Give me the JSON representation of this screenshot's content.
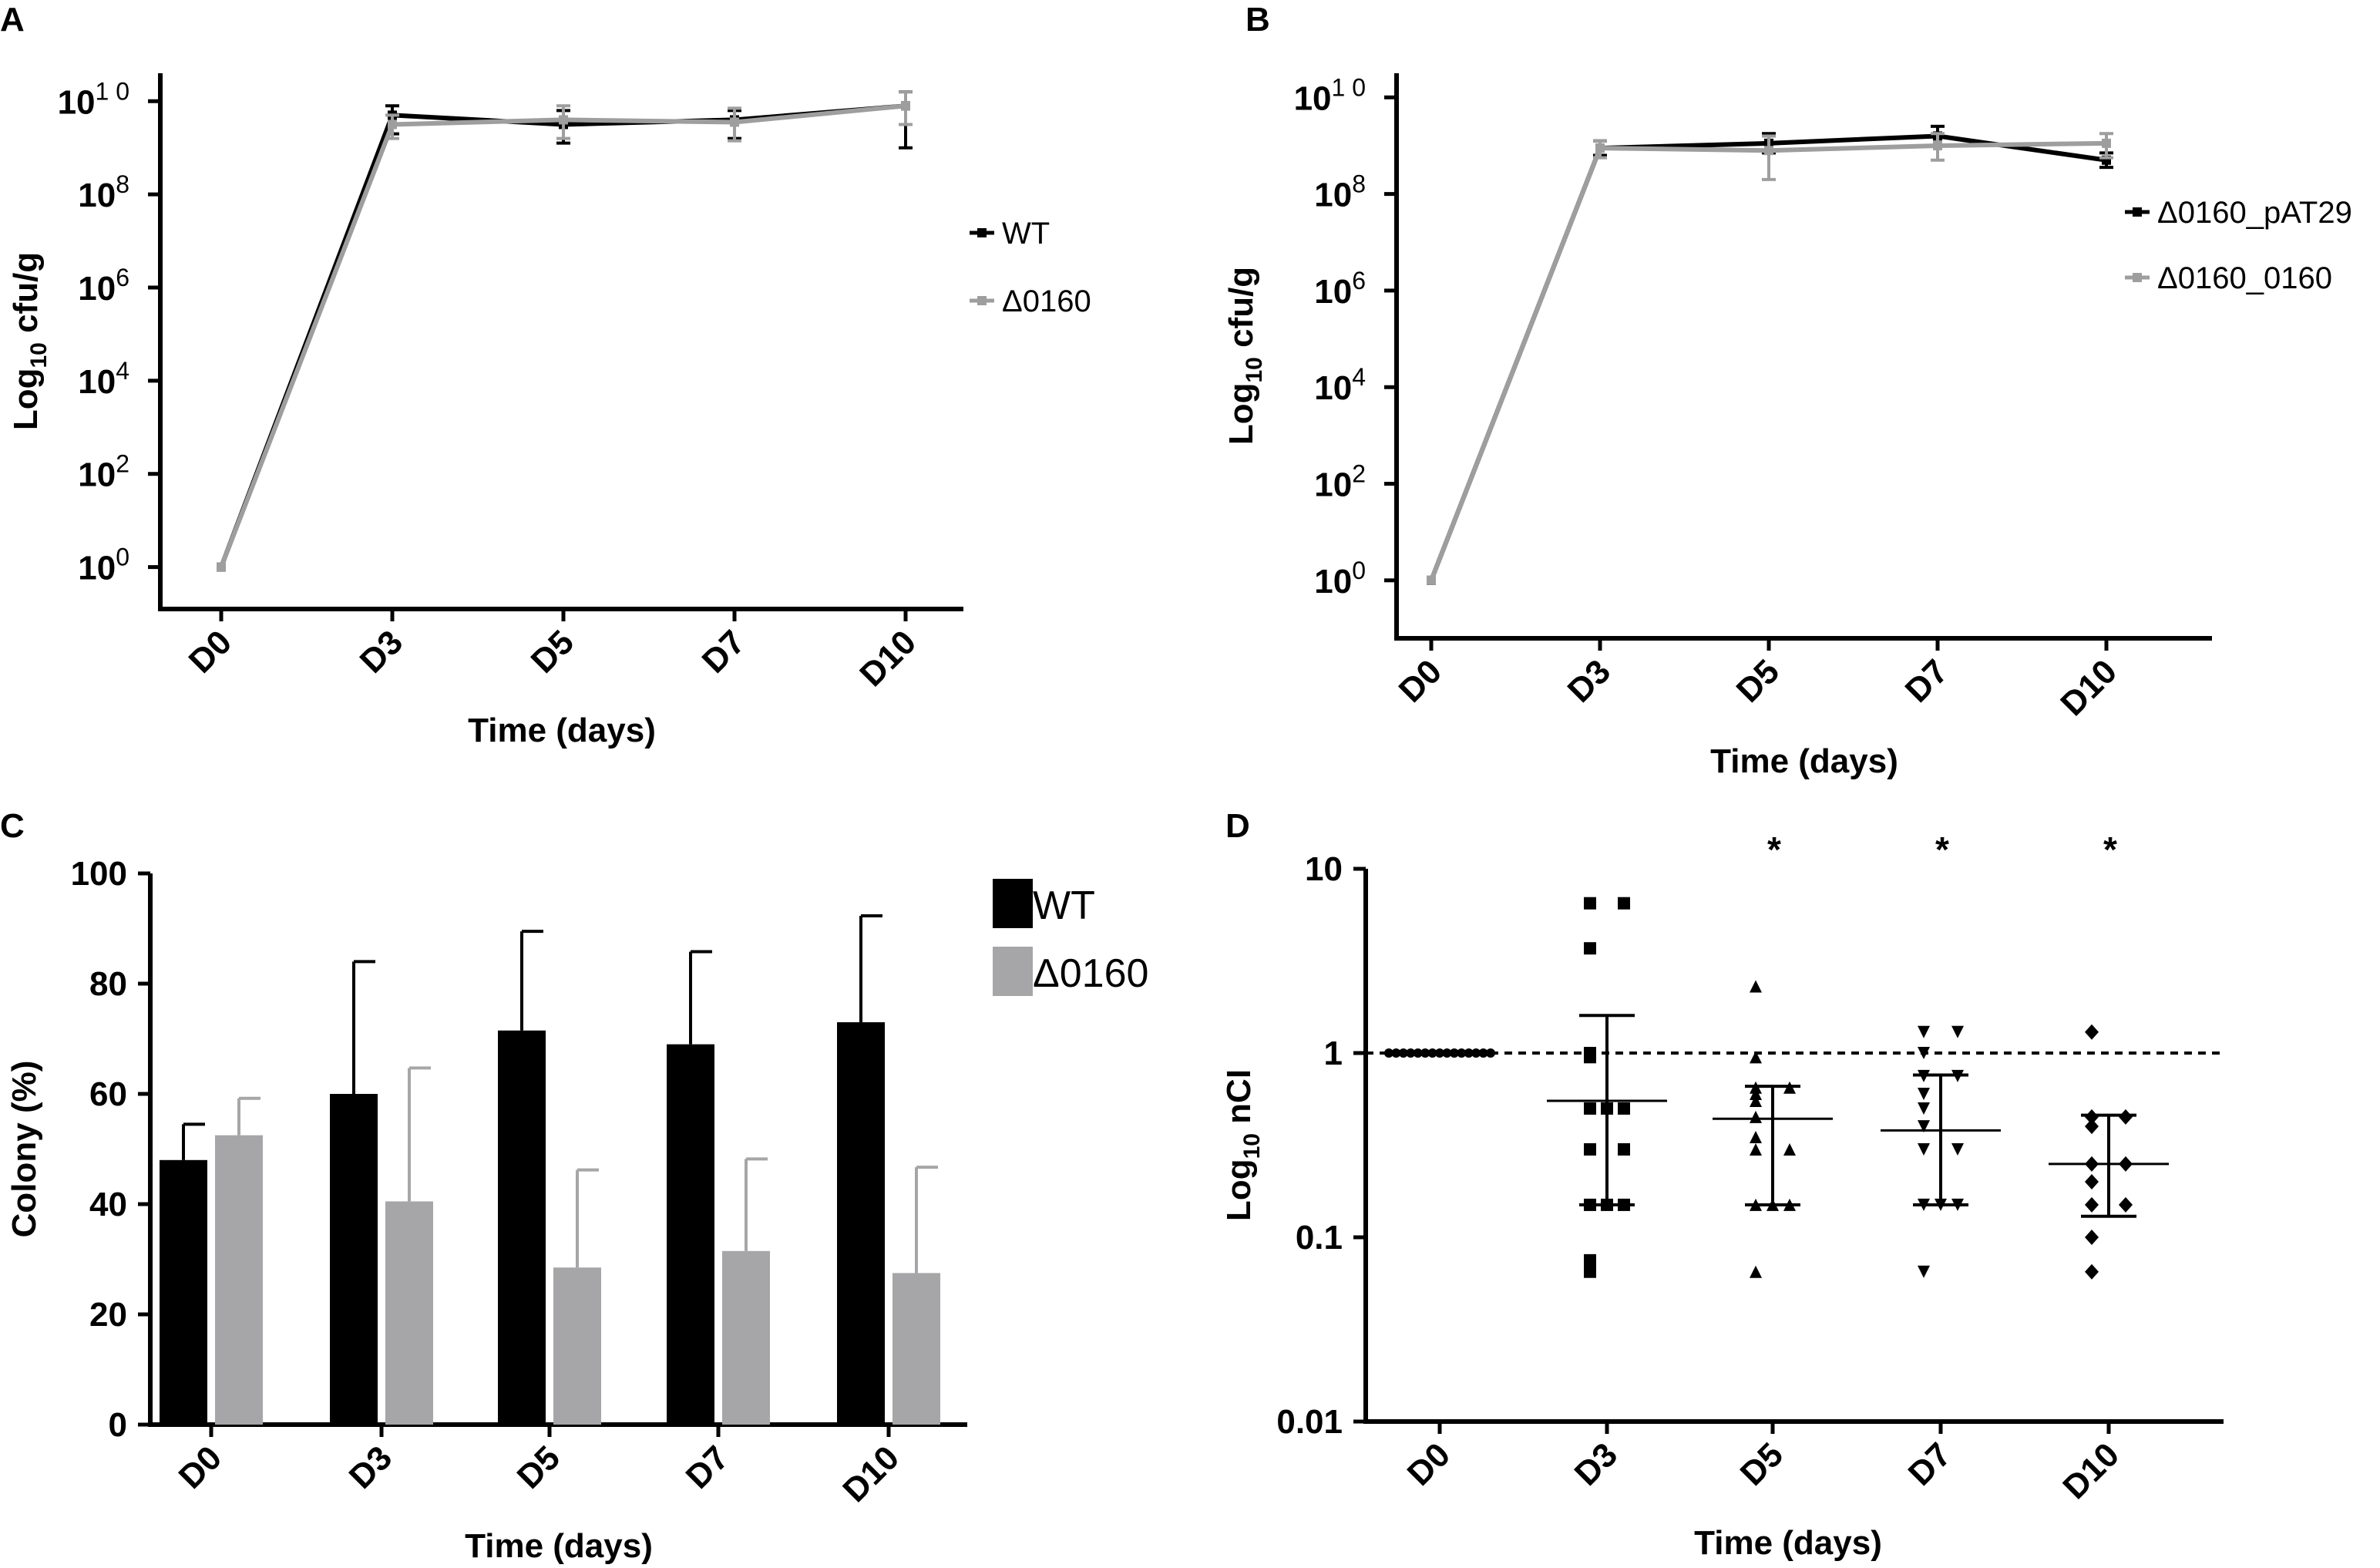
{
  "chart_data": [
    {
      "panel": "A",
      "type": "line",
      "categories": [
        "D0",
        "D3",
        "D5",
        "D7",
        "D10"
      ],
      "xlabel": "Time (days)",
      "ylabel": "Log10 cfu/g",
      "ylabel_base": "Log",
      "ylabel_sub": "10",
      "ylabel_rest": " cfu/g",
      "yscale": "log",
      "ylim_exp": [
        -0.9,
        10.6
      ],
      "yticks": [
        {
          "base": "10",
          "exp": "0",
          "value_exp": 0
        },
        {
          "base": "10",
          "exp": "2",
          "value_exp": 2
        },
        {
          "base": "10",
          "exp": "4",
          "value_exp": 4
        },
        {
          "base": "10",
          "exp": "6",
          "value_exp": 6
        },
        {
          "base": "10",
          "exp": "8",
          "value_exp": 8
        },
        {
          "base": "10",
          "exp": "1 0",
          "value_exp": 10
        }
      ],
      "series": [
        {
          "name": "WT",
          "color": "#000000",
          "values_exp": [
            0,
            9.7,
            9.5,
            9.6,
            9.9
          ],
          "err_up": [
            0,
            0.2,
            0.3,
            0.2,
            0.3
          ],
          "err_down": [
            0,
            0.4,
            0.4,
            0.4,
            0.9
          ]
        },
        {
          "name": "Δ0160",
          "color": "#9e9e9e",
          "values_exp": [
            0,
            9.5,
            9.6,
            9.55,
            9.9
          ],
          "err_up": [
            0,
            0.2,
            0.3,
            0.3,
            0.3
          ],
          "err_down": [
            0,
            0.3,
            0.4,
            0.4,
            0.4
          ]
        }
      ]
    },
    {
      "panel": "B",
      "type": "line",
      "categories": [
        "D0",
        "D3",
        "D5",
        "D7",
        "D10"
      ],
      "xlabel": "Time (days)",
      "ylabel": "Log10 cfu/g",
      "ylabel_base": "Log",
      "ylabel_sub": "10",
      "ylabel_rest": " cfu/g",
      "yscale": "log",
      "ylim_exp": [
        -1.2,
        10.5
      ],
      "yticks": [
        {
          "base": "10",
          "exp": "0",
          "value_exp": 0
        },
        {
          "base": "10",
          "exp": "2",
          "value_exp": 2
        },
        {
          "base": "10",
          "exp": "4",
          "value_exp": 4
        },
        {
          "base": "10",
          "exp": "6",
          "value_exp": 6
        },
        {
          "base": "10",
          "exp": "8",
          "value_exp": 8
        },
        {
          "base": "10",
          "exp": "1 0",
          "value_exp": 10
        }
      ],
      "series": [
        {
          "name": "Δ0160_pAT29",
          "color": "#000000",
          "values_exp": [
            0,
            8.95,
            9.05,
            9.2,
            8.7
          ],
          "err_up": [
            0,
            0.15,
            0.2,
            0.2,
            0.15
          ],
          "err_down": [
            0,
            0.15,
            0.2,
            0.2,
            0.15
          ]
        },
        {
          "name": "Δ0160_0160",
          "color": "#9e9e9e",
          "values_exp": [
            0,
            8.95,
            8.9,
            9.0,
            9.05
          ],
          "err_up": [
            0,
            0.15,
            0.3,
            0.25,
            0.2
          ],
          "err_down": [
            0,
            0.2,
            0.6,
            0.3,
            0.3
          ]
        }
      ]
    },
    {
      "panel": "C",
      "type": "bar",
      "categories": [
        "D0",
        "D3",
        "D5",
        "D7",
        "D10"
      ],
      "xlabel": "Time (days)",
      "ylabel": "Colony (%)",
      "ylim": [
        0,
        100
      ],
      "yticks": [
        0,
        20,
        40,
        60,
        80,
        100
      ],
      "series": [
        {
          "name": "WT",
          "color": "#000000",
          "values": [
            48,
            60,
            71.5,
            69,
            73
          ],
          "err": [
            6.5,
            24,
            18,
            16.8,
            19.3
          ]
        },
        {
          "name": "Δ0160",
          "color": "#a6a6a8",
          "values": [
            52.5,
            40.5,
            28.5,
            31.5,
            27.5
          ],
          "err": [
            6.7,
            24.2,
            17.7,
            16.7,
            19.2
          ]
        }
      ]
    },
    {
      "panel": "D",
      "type": "scatter",
      "categories": [
        "D0",
        "D3",
        "D5",
        "D7",
        "D10"
      ],
      "xlabel": "Time (days)",
      "ylabel": "Log10 nCI",
      "ylabel_base": "Log",
      "ylabel_sub": "10",
      "ylabel_rest": " nCI",
      "yscale": "log",
      "ylim": [
        0.01,
        10
      ],
      "yticks": [
        "0.01",
        "0.1",
        "1",
        "10"
      ],
      "reference_line": 1,
      "significance": [
        "",
        "",
        "*",
        "*",
        "*"
      ],
      "groups": [
        {
          "category": "D0",
          "marker": "circle",
          "points": [
            1,
            1,
            1,
            1,
            1,
            1,
            1,
            1,
            1,
            1,
            1,
            1,
            1,
            1,
            1
          ],
          "median": null,
          "q1": null,
          "q3": null
        },
        {
          "category": "D3",
          "marker": "square",
          "points": [
            6.5,
            6.5,
            3.7,
            1.0,
            0.95,
            0.5,
            0.5,
            0.5,
            0.3,
            0.3,
            0.15,
            0.15,
            0.15,
            0.075,
            0.065
          ],
          "median": 0.55,
          "q1": 0.15,
          "q3": 1.6
        },
        {
          "category": "D5",
          "marker": "triangle-up",
          "points": [
            2.3,
            0.95,
            0.65,
            0.65,
            0.6,
            0.55,
            0.45,
            0.35,
            0.3,
            0.3,
            0.15,
            0.15,
            0.15,
            0.065
          ],
          "median": 0.44,
          "q1": 0.15,
          "q3": 0.66
        },
        {
          "category": "D7",
          "marker": "triangle-down",
          "points": [
            1.3,
            1.3,
            1.0,
            0.75,
            0.75,
            0.6,
            0.5,
            0.4,
            0.3,
            0.3,
            0.15,
            0.15,
            0.15,
            0.065
          ],
          "median": 0.38,
          "q1": 0.15,
          "q3": 0.76
        },
        {
          "category": "D10",
          "marker": "diamond",
          "points": [
            1.3,
            0.45,
            0.45,
            0.4,
            0.25,
            0.25,
            0.2,
            0.15,
            0.15,
            0.1,
            0.065
          ],
          "median": 0.25,
          "q1": 0.13,
          "q3": 0.46
        }
      ]
    }
  ]
}
